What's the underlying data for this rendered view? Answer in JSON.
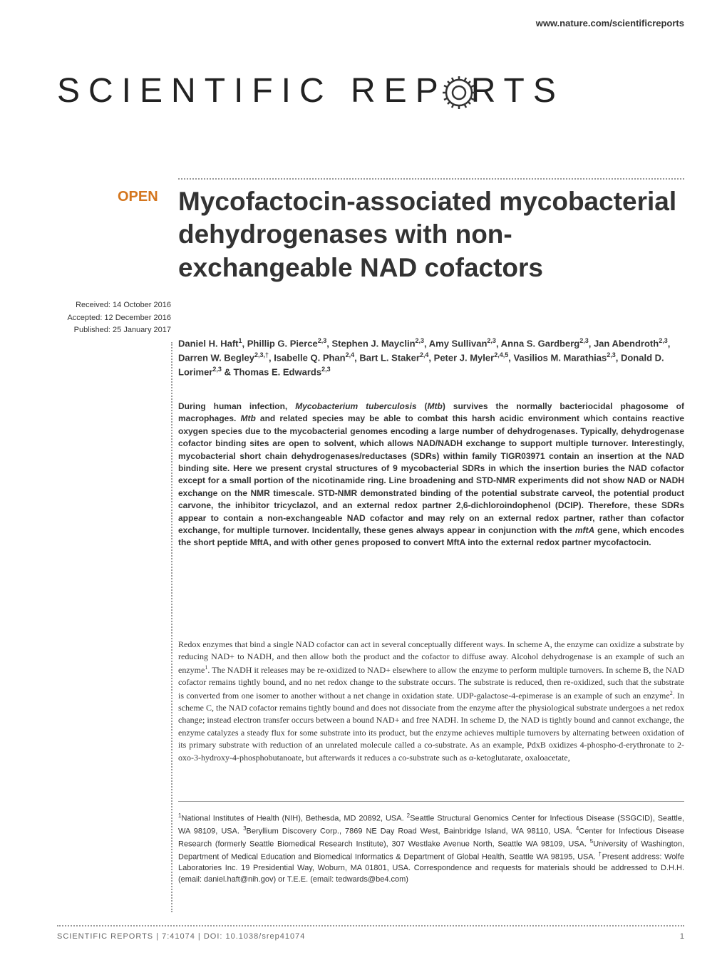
{
  "header": {
    "url": "www.nature.com/scientificreports"
  },
  "journal": {
    "name_part1": "SCIENTIFIC",
    "name_part2": "REP",
    "name_part3": "RTS"
  },
  "badge": {
    "open": "OPEN"
  },
  "title": "Mycofactocin-associated mycobacterial dehydrogenases with non-exchangeable NAD cofactors",
  "dates": {
    "received": "Received: 14 October 2016",
    "accepted": "Accepted: 12 December 2016",
    "published": "Published: 25 January 2017"
  },
  "authors_html": "Daniel H. Haft<sup>1</sup>, Phillip G. Pierce<sup>2,3</sup>, Stephen J. Mayclin<sup>2,3</sup>, Amy Sullivan<sup>2,3</sup>, Anna S. Gardberg<sup>2,3</sup>, Jan Abendroth<sup>2,3</sup>, Darren W. Begley<sup>2,3,†</sup>, Isabelle Q. Phan<sup>2,4</sup>, Bart L. Staker<sup>2,4</sup>, Peter J. Myler<sup>2,4,5</sup>, Vasilios M. Marathias<sup>2,3</sup>, Donald D. Lorimer<sup>2,3</sup> & Thomas E. Edwards<sup>2,3</sup>",
  "abstract_html": "During human infection, <span class=\"italic\">Mycobacterium tuberculosis</span> (<span class=\"italic\">Mtb</span>) survives the normally bacteriocidal phagosome of macrophages. <span class=\"italic\">Mtb</span> and related species may be able to combat this harsh acidic environment which contains reactive oxygen species due to the mycobacterial genomes encoding a large number of dehydrogenases. Typically, dehydrogenase cofactor binding sites are open to solvent, which allows NAD/NADH exchange to support multiple turnover. Interestingly, mycobacterial short chain dehydrogenases/reductases (SDRs) within family TIGR03971 contain an insertion at the NAD binding site. Here we present crystal structures of 9 mycobacterial SDRs in which the insertion buries the NAD cofactor except for a small portion of the nicotinamide ring. Line broadening and STD-NMR experiments did not show NAD or NADH exchange on the NMR timescale. STD-NMR demonstrated binding of the potential substrate carveol, the potential product carvone, the inhibitor tricyclazol, and an external redox partner 2,6-dichloroindophenol (DCIP). Therefore, these SDRs appear to contain a non-exchangeable NAD cofactor and may rely on an external redox partner, rather than cofactor exchange, for multiple turnover. Incidentally, these genes always appear in conjunction with the <span class=\"italic\">mftA</span> gene, which encodes the short peptide MftA, and with other genes proposed to convert MftA into the external redox partner mycofactocin.",
  "body_html": "Redox enzymes that bind a single NAD cofactor can act in several conceptually different ways. In scheme A, the enzyme can oxidize a substrate by reducing NAD+ to NADH, and then allow both the product and the cofactor to diffuse away. Alcohol dehydrogenase is an example of such an enzyme<sup>1</sup>. The NADH it releases may be re-oxidized to NAD+ elsewhere to allow the enzyme to perform multiple turnovers. In scheme B, the NAD cofactor remains tightly bound, and no net redox change to the substrate occurs. The substrate is reduced, then re-oxidized, such that the substrate is converted from one isomer to another without a net change in oxidation state. UDP-galactose-4-epimerase is an example of such an enzyme<sup>2</sup>. In scheme C, the NAD cofactor remains tightly bound and does not dissociate from the enzyme after the physiological substrate undergoes a net redox change; instead electron transfer occurs between a bound NAD+ and free NADH. In scheme D, the NAD is tightly bound and cannot exchange, the enzyme catalyzes a steady flux for some substrate into its product, but the enzyme achieves multiple turnovers by alternating between oxidation of its primary substrate with reduction of an unrelated molecule called a co-substrate. As an example, PdxB oxidizes 4-phospho-d-erythronate to 2-oxo-3-hydroxy-4-phosphobutanoate, but afterwards it reduces a co-substrate such as α-ketoglutarate, oxaloacetate,",
  "affiliations_html": "<sup>1</sup>National Institutes of Health (NIH), Bethesda, MD 20892, USA. <sup>2</sup>Seattle Structural Genomics Center for Infectious Disease (SSGCID), Seattle, WA 98109, USA. <sup>3</sup>Beryllium Discovery Corp., 7869 NE Day Road West, Bainbridge Island, WA 98110, USA. <sup>4</sup>Center for Infectious Disease Research (formerly Seattle Biomedical Research Institute), 307 Westlake Avenue North, Seattle WA 98109, USA. <sup>5</sup>University of Washington, Department of Medical Education and Biomedical Informatics & Department of Global Health, Seattle WA 98195, USA. <sup>†</sup>Present address: Wolfe Laboratories Inc. 19 Presidential Way, Woburn, MA 01801, USA. Correspondence and requests for materials should be addressed to D.H.H. (email: daniel.haft@nih.gov) or T.E.E. (email: tedwards@be4.com)",
  "footer": {
    "citation": "SCIENTIFIC REPORTS | 7:41074 | DOI: 10.1038/srep41074",
    "page": "1"
  },
  "colors": {
    "open_badge": "#d4761e",
    "text": "#333333",
    "footer_text": "#666666",
    "dotted": "#999999"
  }
}
